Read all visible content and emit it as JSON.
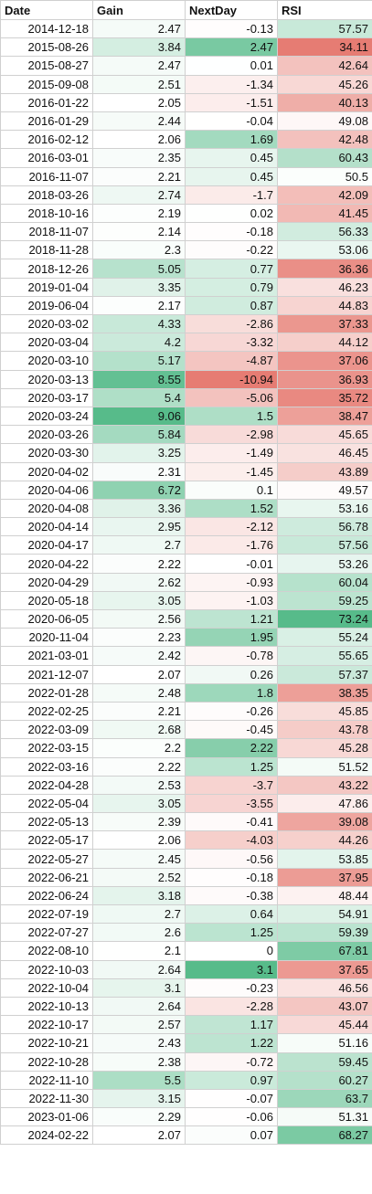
{
  "columns": [
    "Date",
    "Gain",
    "NextDay",
    "RSI"
  ],
  "colors": {
    "positive_strong": "#57bb8a",
    "negative_strong": "#e67c73",
    "neutral": "#ffffff",
    "grid": "#d0d0d0"
  },
  "ranges": {
    "gain": {
      "min": 2.05,
      "max": 9.06
    },
    "nextday": {
      "min": -10.94,
      "max": 3.1
    },
    "rsi": {
      "min": 34.11,
      "mid": 50,
      "max": 73.24
    }
  },
  "rows": [
    [
      "2014-12-18",
      "2.47",
      "-0.13",
      "57.57"
    ],
    [
      "2015-08-26",
      "3.84",
      "2.47",
      "34.11"
    ],
    [
      "2015-08-27",
      "2.47",
      "0.01",
      "42.64"
    ],
    [
      "2015-09-08",
      "2.51",
      "-1.34",
      "45.26"
    ],
    [
      "2016-01-22",
      "2.05",
      "-1.51",
      "40.13"
    ],
    [
      "2016-01-29",
      "2.44",
      "-0.04",
      "49.08"
    ],
    [
      "2016-02-12",
      "2.06",
      "1.69",
      "42.48"
    ],
    [
      "2016-03-01",
      "2.35",
      "0.45",
      "60.43"
    ],
    [
      "2016-11-07",
      "2.21",
      "0.45",
      "50.5"
    ],
    [
      "2018-03-26",
      "2.74",
      "-1.7",
      "42.09"
    ],
    [
      "2018-10-16",
      "2.19",
      "0.02",
      "41.45"
    ],
    [
      "2018-11-07",
      "2.14",
      "-0.18",
      "56.33"
    ],
    [
      "2018-11-28",
      "2.3",
      "-0.22",
      "53.06"
    ],
    [
      "2018-12-26",
      "5.05",
      "0.77",
      "36.36"
    ],
    [
      "2019-01-04",
      "3.35",
      "0.79",
      "46.23"
    ],
    [
      "2019-06-04",
      "2.17",
      "0.87",
      "44.83"
    ],
    [
      "2020-03-02",
      "4.33",
      "-2.86",
      "37.33"
    ],
    [
      "2020-03-04",
      "4.2",
      "-3.32",
      "44.12"
    ],
    [
      "2020-03-10",
      "5.17",
      "-4.87",
      "37.06"
    ],
    [
      "2020-03-13",
      "8.55",
      "-10.94",
      "36.93"
    ],
    [
      "2020-03-17",
      "5.4",
      "-5.06",
      "35.72"
    ],
    [
      "2020-03-24",
      "9.06",
      "1.5",
      "38.47"
    ],
    [
      "2020-03-26",
      "5.84",
      "-2.98",
      "45.65"
    ],
    [
      "2020-03-30",
      "3.25",
      "-1.49",
      "46.45"
    ],
    [
      "2020-04-02",
      "2.31",
      "-1.45",
      "43.89"
    ],
    [
      "2020-04-06",
      "6.72",
      "0.1",
      "49.57"
    ],
    [
      "2020-04-08",
      "3.36",
      "1.52",
      "53.16"
    ],
    [
      "2020-04-14",
      "2.95",
      "-2.12",
      "56.78"
    ],
    [
      "2020-04-17",
      "2.7",
      "-1.76",
      "57.56"
    ],
    [
      "2020-04-22",
      "2.22",
      "-0.01",
      "53.26"
    ],
    [
      "2020-04-29",
      "2.62",
      "-0.93",
      "60.04"
    ],
    [
      "2020-05-18",
      "3.05",
      "-1.03",
      "59.25"
    ],
    [
      "2020-06-05",
      "2.56",
      "1.21",
      "73.24"
    ],
    [
      "2020-11-04",
      "2.23",
      "1.95",
      "55.24"
    ],
    [
      "2021-03-01",
      "2.42",
      "-0.78",
      "55.65"
    ],
    [
      "2021-12-07",
      "2.07",
      "0.26",
      "57.37"
    ],
    [
      "2022-01-28",
      "2.48",
      "1.8",
      "38.35"
    ],
    [
      "2022-02-25",
      "2.21",
      "-0.26",
      "45.85"
    ],
    [
      "2022-03-09",
      "2.68",
      "-0.45",
      "43.78"
    ],
    [
      "2022-03-15",
      "2.2",
      "2.22",
      "45.28"
    ],
    [
      "2022-03-16",
      "2.22",
      "1.25",
      "51.52"
    ],
    [
      "2022-04-28",
      "2.53",
      "-3.7",
      "43.22"
    ],
    [
      "2022-05-04",
      "3.05",
      "-3.55",
      "47.86"
    ],
    [
      "2022-05-13",
      "2.39",
      "-0.41",
      "39.08"
    ],
    [
      "2022-05-17",
      "2.06",
      "-4.03",
      "44.26"
    ],
    [
      "2022-05-27",
      "2.45",
      "-0.56",
      "53.85"
    ],
    [
      "2022-06-21",
      "2.52",
      "-0.18",
      "37.95"
    ],
    [
      "2022-06-24",
      "3.18",
      "-0.38",
      "48.44"
    ],
    [
      "2022-07-19",
      "2.7",
      "0.64",
      "54.91"
    ],
    [
      "2022-07-27",
      "2.6",
      "1.25",
      "59.39"
    ],
    [
      "2022-08-10",
      "2.1",
      "0",
      "67.81"
    ],
    [
      "2022-10-03",
      "2.64",
      "3.1",
      "37.65"
    ],
    [
      "2022-10-04",
      "3.1",
      "-0.23",
      "46.56"
    ],
    [
      "2022-10-13",
      "2.64",
      "-2.28",
      "43.07"
    ],
    [
      "2022-10-17",
      "2.57",
      "1.17",
      "45.44"
    ],
    [
      "2022-10-21",
      "2.43",
      "1.22",
      "51.16"
    ],
    [
      "2022-10-28",
      "2.38",
      "-0.72",
      "59.45"
    ],
    [
      "2022-11-10",
      "5.5",
      "0.97",
      "60.27"
    ],
    [
      "2022-11-30",
      "3.15",
      "-0.07",
      "63.7"
    ],
    [
      "2023-01-06",
      "2.29",
      "-0.06",
      "51.31"
    ],
    [
      "2024-02-22",
      "2.07",
      "0.07",
      "68.27"
    ]
  ]
}
